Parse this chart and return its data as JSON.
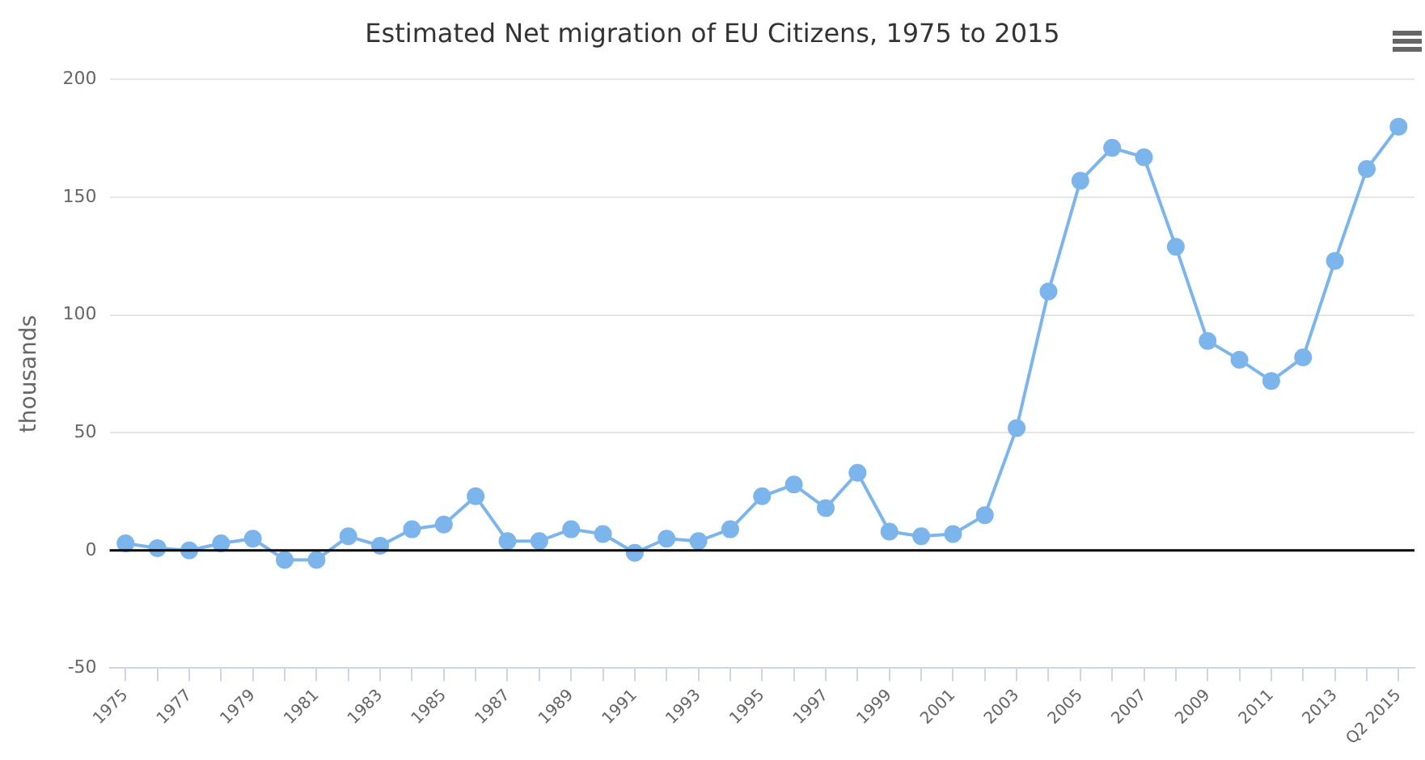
{
  "chart_data": {
    "type": "line",
    "title": "Estimated Net migration of EU Citizens, 1975 to 2015",
    "ylabel": "thousands",
    "categories": [
      "1975",
      null,
      "1977",
      null,
      "1979",
      null,
      "1981",
      null,
      "1983",
      null,
      "1985",
      null,
      "1987",
      null,
      "1989",
      null,
      "1991",
      null,
      "1993",
      null,
      "1995",
      null,
      "1997",
      null,
      "1999",
      null,
      "2001",
      null,
      "2003",
      null,
      "2005",
      null,
      "2007",
      null,
      "2009",
      null,
      "2011",
      null,
      "2013",
      null,
      "Q2 2015"
    ],
    "series": [
      {
        "color": "#7cb5ec",
        "values": [
          3,
          1,
          0,
          3,
          5,
          -4,
          -4,
          6,
          2,
          9,
          11,
          23,
          4,
          4,
          9,
          7,
          -1,
          5,
          4,
          9,
          23,
          28,
          18,
          33,
          8,
          6,
          7,
          15,
          52,
          110,
          157,
          171,
          167,
          129,
          89,
          81,
          72,
          82,
          123,
          162,
          180
        ]
      }
    ],
    "ylim": [
      -50,
      200
    ],
    "yticks": [
      -50,
      0,
      50,
      100,
      150,
      200
    ],
    "grid": "y",
    "legend": false,
    "marker": "circle",
    "line_style": "solid",
    "ref_lines": [
      {
        "axis": "y",
        "value": 0,
        "color": "#000000"
      }
    ]
  }
}
